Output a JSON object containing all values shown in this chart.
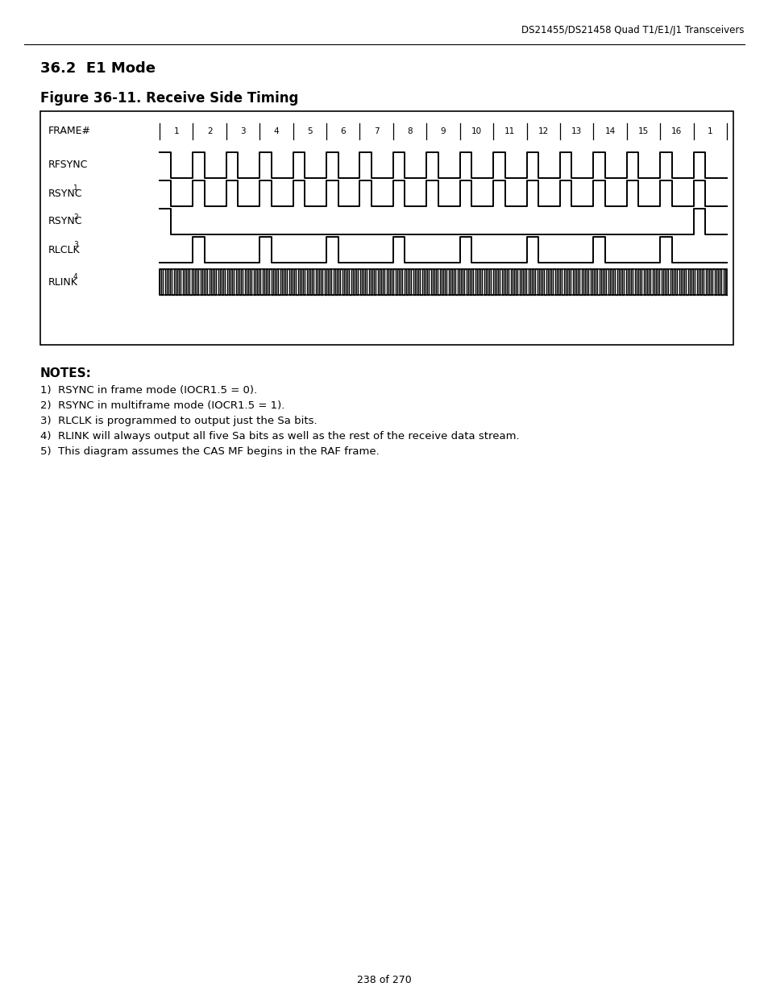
{
  "header_text": "DS21455/DS21458 Quad T1/E1/J1 Transceivers",
  "section_title": "36.2  E1 Mode",
  "figure_title": "Figure 36-11. Receive Side Timing",
  "page_footer": "238 of 270",
  "notes_title": "NOTES:",
  "notes": [
    "1)  RSYNC in frame mode (IOCR1.5 = 0).",
    "2)  RSYNC in multiframe mode (IOCR1.5 = 1).",
    "3)  RLCLK is programmed to output just the Sa bits.",
    "4)  RLINK will always output all five Sa bits as well as the rest of the receive data stream.",
    "5)  This diagram assumes the CAS MF begins in the RAF frame."
  ],
  "frame_labels": [
    "1",
    "2",
    "3",
    "4",
    "5",
    "6",
    "7",
    "8",
    "9",
    "10",
    "11",
    "12",
    "13",
    "14",
    "15",
    "16",
    "1"
  ],
  "background_color": "#ffffff",
  "fig_width": 9.54,
  "fig_height": 12.35,
  "dpi": 100
}
